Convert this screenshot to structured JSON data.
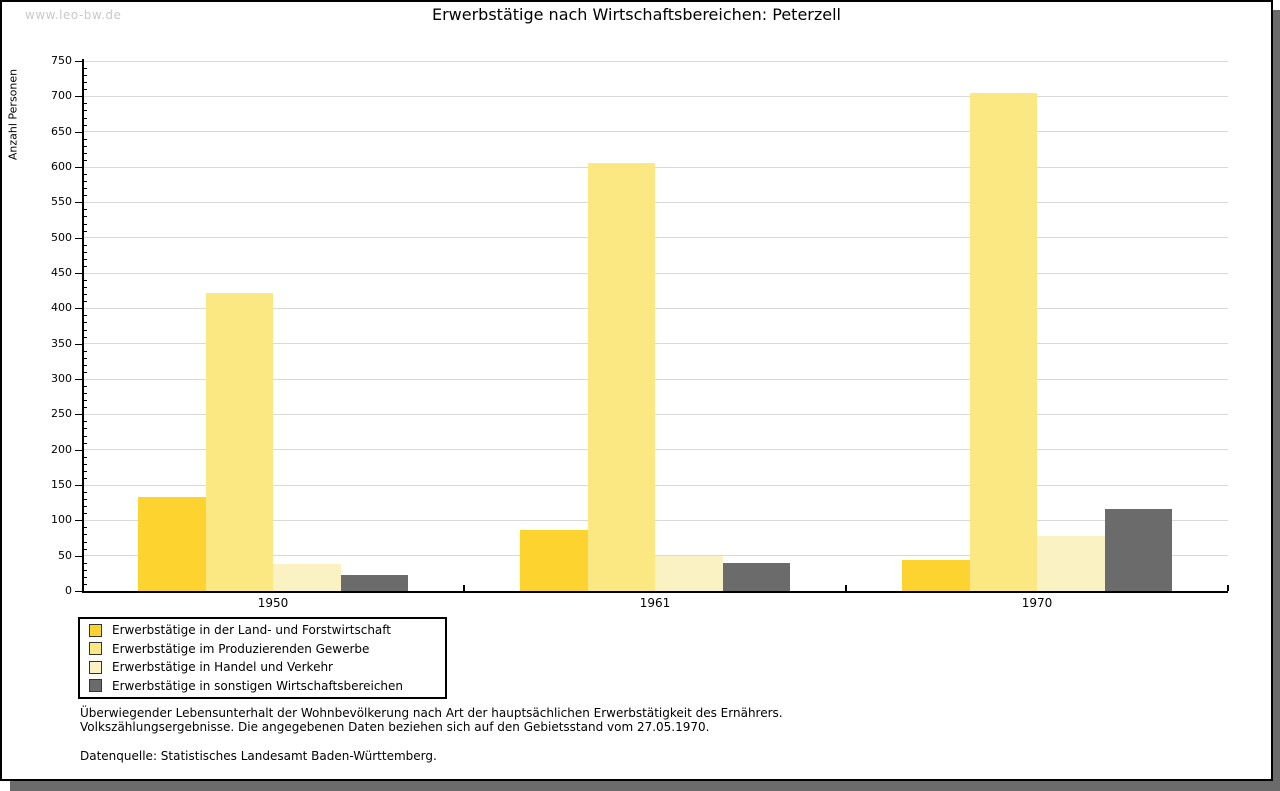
{
  "watermark": "www.leo-bw.de",
  "chart_data": {
    "type": "bar",
    "title": "Erwerbstätige nach Wirtschaftsbereichen: Peterzell",
    "xlabel": "",
    "ylabel": "Anzahl Personen",
    "categories": [
      "1950",
      "1961",
      "1970"
    ],
    "series": [
      {
        "name": "Erwerbstätige in der Land- und Forstwirtschaft",
        "color": "#FCD32F",
        "values": [
          133,
          87,
          44
        ]
      },
      {
        "name": "Erwerbstätige im Produzierenden Gewerbe",
        "color": "#FCE883",
        "values": [
          422,
          605,
          705
        ]
      },
      {
        "name": "Erwerbstätige in Handel und Verkehr",
        "color": "#FBF2C4",
        "values": [
          38,
          50,
          78
        ]
      },
      {
        "name": "Erwerbstätige in sonstigen Wirtschaftsbereichen",
        "color": "#6B6B6B",
        "values": [
          23,
          40,
          116
        ]
      }
    ],
    "ylim": [
      0,
      750
    ],
    "y_major_step": 50,
    "y_minor_step": 10,
    "grid": true,
    "legend_position": "bottom-left"
  },
  "footer": {
    "note_lines": [
      "Überwiegender Lebensunterhalt der Wohnbevölkerung nach Art der hauptsächlichen Erwerbstätigkeit des Ernährers.",
      "Volkszählungsergebnisse. Die angegebenen Daten beziehen sich auf den Gebietsstand vom 27.05.1970."
    ],
    "source": "Datenquelle: Statistisches Landesamt Baden-Württemberg."
  },
  "colors": {
    "axis": "#000000",
    "grid": "#d9d9d9",
    "shadow": "#6b6b6b",
    "watermark": "#c9c9c9",
    "background": "#ffffff",
    "legend_border": "#000000"
  }
}
